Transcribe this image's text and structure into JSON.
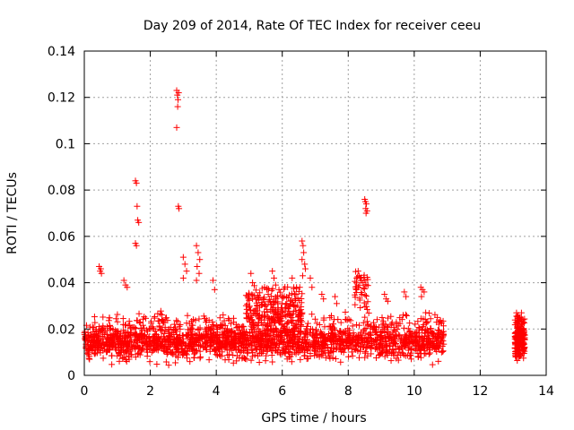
{
  "chart_data": {
    "type": "scatter",
    "title": "Day 209 of 2014, Rate Of TEC Index for receiver ceeu",
    "xlabel": "GPS time / hours",
    "ylabel": "ROTI / TECUs",
    "xlim": [
      0,
      14
    ],
    "ylim": [
      0,
      0.14
    ],
    "xticks": [
      "0",
      "2",
      "4",
      "6",
      "8",
      "10",
      "12",
      "14"
    ],
    "yticks": [
      "0",
      "0.02",
      "0.04",
      "0.06",
      "0.08",
      "0.1",
      "0.12",
      "0.14"
    ],
    "grid": true,
    "marker": "+",
    "color": "#ff0000",
    "series": [
      {
        "name": "ROTI",
        "clusters": [
          {
            "x": [
              0.0,
              10.9
            ],
            "y_range": [
              0.004,
              0.028
            ],
            "density": 1200
          },
          {
            "x": [
              0.0,
              10.9
            ],
            "y_range": [
              0.008,
              0.02
            ],
            "density": 900
          },
          {
            "x": [
              4.9,
              6.6
            ],
            "y_range": [
              0.015,
              0.04
            ],
            "density": 250
          },
          {
            "x": [
              8.2,
              8.6
            ],
            "y_range": [
              0.028,
              0.045
            ],
            "density": 40
          },
          {
            "x": [
              13.05,
              13.35
            ],
            "y_range": [
              0.005,
              0.027
            ],
            "density": 180
          }
        ],
        "points": [
          [
            0.45,
            0.047
          ],
          [
            0.48,
            0.045
          ],
          [
            0.5,
            0.046
          ],
          [
            0.52,
            0.044
          ],
          [
            1.2,
            0.041
          ],
          [
            1.25,
            0.039
          ],
          [
            1.3,
            0.038
          ],
          [
            1.55,
            0.084
          ],
          [
            1.58,
            0.083
          ],
          [
            1.6,
            0.073
          ],
          [
            1.62,
            0.067
          ],
          [
            1.65,
            0.066
          ],
          [
            1.55,
            0.057
          ],
          [
            1.58,
            0.056
          ],
          [
            2.8,
            0.123
          ],
          [
            2.82,
            0.121
          ],
          [
            2.84,
            0.119
          ],
          [
            2.86,
            0.122
          ],
          [
            2.83,
            0.116
          ],
          [
            2.8,
            0.107
          ],
          [
            2.85,
            0.073
          ],
          [
            2.87,
            0.072
          ],
          [
            3.0,
            0.051
          ],
          [
            3.05,
            0.048
          ],
          [
            3.1,
            0.045
          ],
          [
            3.0,
            0.042
          ],
          [
            3.4,
            0.056
          ],
          [
            3.45,
            0.053
          ],
          [
            3.5,
            0.05
          ],
          [
            3.42,
            0.047
          ],
          [
            3.48,
            0.044
          ],
          [
            3.4,
            0.041
          ],
          [
            3.9,
            0.041
          ],
          [
            3.95,
            0.037
          ],
          [
            5.05,
            0.044
          ],
          [
            5.1,
            0.04
          ],
          [
            4.95,
            0.034
          ],
          [
            5.7,
            0.045
          ],
          [
            5.75,
            0.042
          ],
          [
            5.8,
            0.039
          ],
          [
            5.9,
            0.037
          ],
          [
            6.3,
            0.042
          ],
          [
            6.35,
            0.038
          ],
          [
            6.6,
            0.058
          ],
          [
            6.63,
            0.056
          ],
          [
            6.65,
            0.053
          ],
          [
            6.6,
            0.05
          ],
          [
            6.68,
            0.048
          ],
          [
            6.7,
            0.046
          ],
          [
            6.62,
            0.043
          ],
          [
            6.85,
            0.042
          ],
          [
            6.9,
            0.038
          ],
          [
            7.2,
            0.035
          ],
          [
            7.25,
            0.033
          ],
          [
            7.6,
            0.034
          ],
          [
            7.65,
            0.031
          ],
          [
            8.5,
            0.076
          ],
          [
            8.52,
            0.075
          ],
          [
            8.55,
            0.074
          ],
          [
            8.53,
            0.072
          ],
          [
            8.57,
            0.071
          ],
          [
            8.54,
            0.07
          ],
          [
            8.3,
            0.045
          ],
          [
            8.33,
            0.043
          ],
          [
            8.36,
            0.042
          ],
          [
            8.4,
            0.041
          ],
          [
            8.45,
            0.04
          ],
          [
            9.1,
            0.035
          ],
          [
            9.15,
            0.033
          ],
          [
            9.2,
            0.032
          ],
          [
            9.7,
            0.036
          ],
          [
            9.75,
            0.034
          ],
          [
            10.2,
            0.038
          ],
          [
            10.25,
            0.037
          ],
          [
            10.3,
            0.036
          ],
          [
            10.22,
            0.034
          ],
          [
            10.7,
            0.025
          ],
          [
            10.75,
            0.023
          ],
          [
            13.1,
            0.027
          ],
          [
            13.15,
            0.026
          ],
          [
            13.2,
            0.025
          ],
          [
            13.25,
            0.027
          ],
          [
            13.3,
            0.024
          ]
        ]
      }
    ]
  }
}
